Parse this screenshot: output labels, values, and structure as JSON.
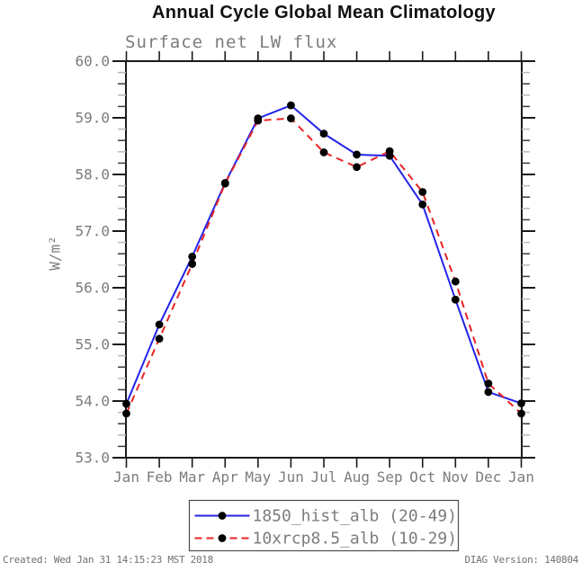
{
  "title": "Annual Cycle Global Mean Climatology",
  "subtitle": "Surface net LW flux",
  "footer": {
    "created": "Created: Wed Jan 31 14:15:23 MST 2018",
    "version": "DIAG Version: 140804"
  },
  "colors": {
    "background": "#ffffff",
    "axis": "#1a1a1a",
    "tick_minor_dark": "#3a3a3a",
    "tick_minor_light": "#b8b8b8",
    "text_gray": "#7c7c7c",
    "marker": "#000000",
    "legend_border": "#4a4a4a"
  },
  "chart_data": {
    "type": "line",
    "title": "Annual Cycle Global Mean Climatology",
    "subtitle": "Surface net LW flux",
    "xlabel": "",
    "ylabel": "W/m²",
    "ylim": [
      53.0,
      60.0
    ],
    "y_major_step": 1.0,
    "y_minor_step": 0.2,
    "grid": false,
    "legend_position": "bottom-center",
    "categories": [
      "Jan",
      "Feb",
      "Mar",
      "Apr",
      "May",
      "Jun",
      "Jul",
      "Aug",
      "Sep",
      "Oct",
      "Nov",
      "Dec",
      "Jan"
    ],
    "series": [
      {
        "name": "1850_hist_alb (20-49)",
        "line_style": "solid",
        "color": "#2323e8",
        "marker": "circle",
        "marker_color": "#000000",
        "values": [
          53.95,
          55.35,
          56.55,
          57.85,
          58.99,
          59.22,
          58.72,
          58.35,
          58.33,
          57.47,
          55.79,
          54.16,
          53.96
        ]
      },
      {
        "name": "10xrcp8.5_alb (10-29)",
        "line_style": "dashed",
        "color": "#e82323",
        "marker": "circle",
        "marker_color": "#000000",
        "values": [
          53.78,
          55.1,
          56.42,
          57.84,
          58.95,
          58.99,
          58.39,
          58.13,
          58.41,
          57.69,
          56.11,
          54.31,
          53.78
        ]
      }
    ]
  }
}
